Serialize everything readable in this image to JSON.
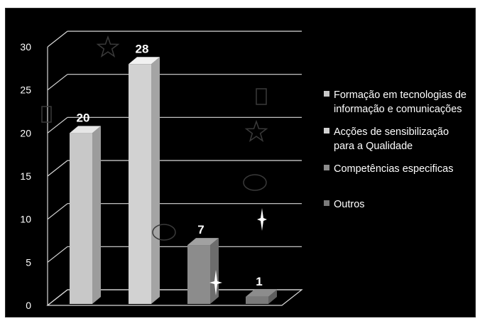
{
  "chart_data": {
    "type": "bar",
    "title": "",
    "xlabel": "",
    "ylabel": "",
    "ylim": [
      0,
      30
    ],
    "yticks": [
      0,
      5,
      10,
      15,
      20,
      25,
      30
    ],
    "grid": true,
    "legend_position": "right",
    "series": [
      {
        "name": "Formação em tecnologias de informação e comunicações",
        "legend_lines": [
          "Formação em tecnologias de",
          "informação e comunicações"
        ],
        "value": 20,
        "color": "#c8c8c8"
      },
      {
        "name": "Acções de sensibilização para a Qualidade",
        "legend_lines": [
          "Acções de sensibilização",
          "para a Qualidade"
        ],
        "value": 28,
        "color": "#d2d2d2"
      },
      {
        "name": "Competências especificas",
        "legend_lines": [
          "Competências especificas"
        ],
        "value": 7,
        "color": "#8c8c8c"
      },
      {
        "name": "Outros",
        "legend_lines": [
          "Outros"
        ],
        "value": 1,
        "color": "#7a7a7a"
      }
    ],
    "data_labels": [
      "20",
      "28",
      "7",
      "1"
    ],
    "decorations": [
      "star-outline-icon",
      "rectangle-outline-icon",
      "ellipse-outline-icon",
      "four-point-sparkle-icon"
    ]
  }
}
